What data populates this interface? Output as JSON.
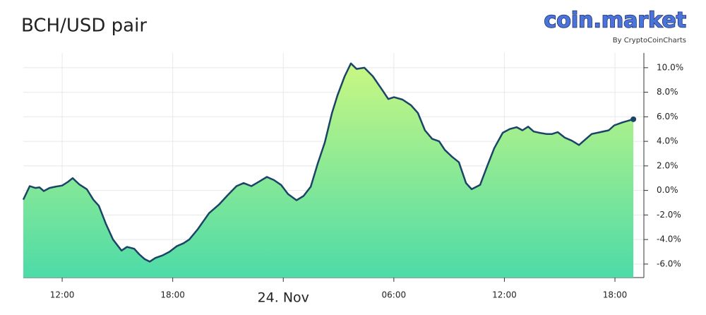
{
  "chart_data": {
    "type": "area",
    "title": "BCH/USD pair",
    "logo": {
      "text": "coin.market",
      "byline": "By CryptoCoinCharts"
    },
    "x": [
      9.89,
      10.24,
      10.54,
      10.77,
      11.0,
      11.31,
      11.62,
      12.0,
      12.31,
      12.57,
      12.92,
      13.34,
      13.69,
      13.99,
      14.38,
      14.76,
      15.22,
      15.52,
      15.91,
      16.18,
      16.48,
      16.75,
      17.06,
      17.44,
      17.82,
      18.21,
      18.59,
      18.9,
      19.36,
      19.97,
      20.51,
      20.97,
      21.46,
      21.85,
      22.27,
      22.61,
      23.11,
      23.49,
      23.88,
      24.26,
      24.72,
      25.1,
      25.49,
      25.87,
      26.25,
      26.64,
      26.94,
      27.33,
      27.67,
      27.98,
      28.4,
      28.86,
      29.32,
      29.7,
      30.01,
      30.47,
      30.93,
      31.31,
      31.69,
      32.08,
      32.46,
      32.77,
      33.15,
      33.53,
      33.92,
      34.22,
      34.68,
      35.07,
      35.45,
      35.91,
      36.29,
      36.67,
      36.98,
      37.29,
      37.59,
      37.9,
      38.28,
      38.59,
      38.9,
      39.28,
      39.66,
      40.05,
      40.43,
      40.74,
      41.2,
      41.66,
      41.96,
      42.42,
      43.0
    ],
    "series": [
      {
        "color": "#1b4466",
        "values": [
          -0.75,
          0.35,
          0.2,
          0.25,
          -0.05,
          0.2,
          0.3,
          0.4,
          0.7,
          1.0,
          0.5,
          0.1,
          -0.75,
          -1.25,
          -2.75,
          -4.0,
          -4.9,
          -4.6,
          -4.75,
          -5.2,
          -5.6,
          -5.8,
          -5.5,
          -5.3,
          -5.0,
          -4.55,
          -4.3,
          -4.0,
          -3.15,
          -1.85,
          -1.15,
          -0.4,
          0.35,
          0.6,
          0.35,
          0.65,
          1.1,
          0.85,
          0.45,
          -0.3,
          -0.8,
          -0.45,
          0.3,
          2.2,
          3.9,
          6.3,
          7.75,
          9.3,
          10.35,
          9.9,
          10.0,
          9.3,
          8.3,
          7.45,
          7.6,
          7.4,
          6.95,
          6.3,
          4.9,
          4.2,
          4.0,
          3.3,
          2.75,
          2.3,
          0.6,
          0.1,
          0.45,
          2.0,
          3.45,
          4.7,
          5.0,
          5.15,
          4.9,
          5.2,
          4.8,
          4.7,
          4.6,
          4.6,
          4.75,
          4.3,
          4.05,
          3.7,
          4.2,
          4.6,
          4.75,
          4.9,
          5.3,
          5.55,
          5.8
        ]
      }
    ],
    "fill_top": "#c9f782",
    "fill_bottom": "#4ddba8",
    "xlim": [
      9.89,
      43.57
    ],
    "ylim": [
      -7.1,
      11.2
    ],
    "xticks": [
      {
        "value": 12,
        "label": "12:00"
      },
      {
        "value": 18,
        "label": "18:00"
      },
      {
        "value": 24,
        "label": "24. Nov"
      },
      {
        "value": 30,
        "label": "06:00"
      },
      {
        "value": 36,
        "label": "12:00"
      },
      {
        "value": 42,
        "label": "18:00"
      }
    ],
    "yticks": [
      {
        "value": -6,
        "label": "-6.0%"
      },
      {
        "value": -4,
        "label": "-4.0%"
      },
      {
        "value": -2,
        "label": "-2.0%"
      },
      {
        "value": 0,
        "label": "0.0%"
      },
      {
        "value": 2,
        "label": "2.0%"
      },
      {
        "value": 4,
        "label": "4.0%"
      },
      {
        "value": 6,
        "label": "6.0%"
      },
      {
        "value": 8,
        "label": "8.0%"
      },
      {
        "value": 10,
        "label": "10.0%"
      }
    ],
    "grid": true
  }
}
